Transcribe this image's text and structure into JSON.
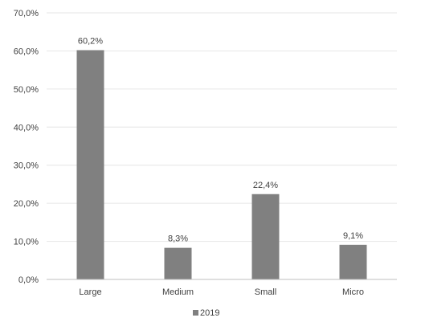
{
  "chart_data": {
    "type": "bar",
    "categories": [
      "Large",
      "Medium",
      "Small",
      "Micro"
    ],
    "series": [
      {
        "name": "2019",
        "values": [
          60.2,
          8.3,
          22.4,
          9.1
        ],
        "labels": [
          "60,2%",
          "8,3%",
          "22,4%",
          "9,1%"
        ],
        "color": "#808080"
      }
    ],
    "title": "",
    "xlabel": "",
    "ylabel": "",
    "ylim": [
      0,
      70
    ],
    "yticks": [
      0,
      10,
      20,
      30,
      40,
      50,
      60,
      70
    ],
    "ytick_labels": [
      "0,0%",
      "10,0%",
      "20,0%",
      "30,0%",
      "40,0%",
      "50,0%",
      "60,0%",
      "70,0%"
    ],
    "grid": true,
    "legend": {
      "position": "bottom",
      "entries": [
        "2019"
      ]
    },
    "gridline_color": "#e6e6e6",
    "axis_color": "#bfbfbf",
    "text_color": "#404040"
  }
}
